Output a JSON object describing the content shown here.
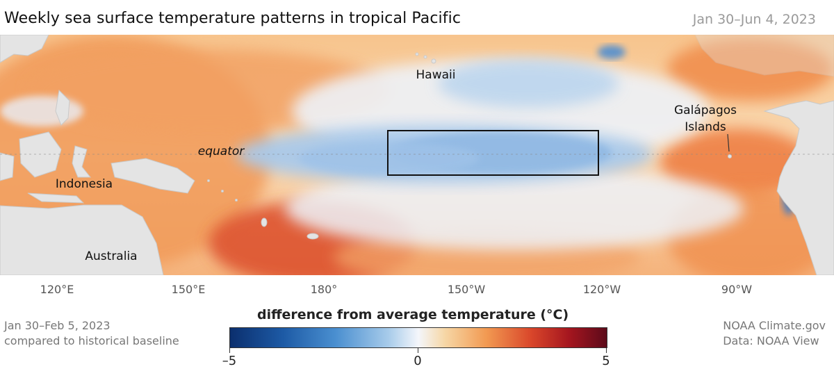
{
  "title": "Weekly sea surface temperature patterns in tropical Pacific",
  "date_range": "Jan 30–Jun 4, 2023",
  "map": {
    "place_labels": {
      "hawaii": "Hawaii",
      "galapagos_line1": "Galápagos",
      "galapagos_line2": "Islands",
      "equator": "equator",
      "indonesia": "Indonesia",
      "australia": "Australia"
    },
    "lon_labels": [
      "120°E",
      "150°E",
      "180°",
      "150°W",
      "120°W",
      "90°W"
    ]
  },
  "legend": {
    "title": "difference from average temperature (°C)",
    "min_label": "–5",
    "mid_label": "0",
    "max_label": "5",
    "colors": {
      "cold_extreme": "#0b2f6e",
      "neutral": "#f4f6fb",
      "warm_extreme": "#5c0a1a"
    }
  },
  "footnote": {
    "line1": "Jan 30–Feb 5, 2023",
    "line2": "compared to historical baseline"
  },
  "credit": {
    "line1": "NOAA Climate.gov",
    "line2": "Data: NOAA View"
  }
}
